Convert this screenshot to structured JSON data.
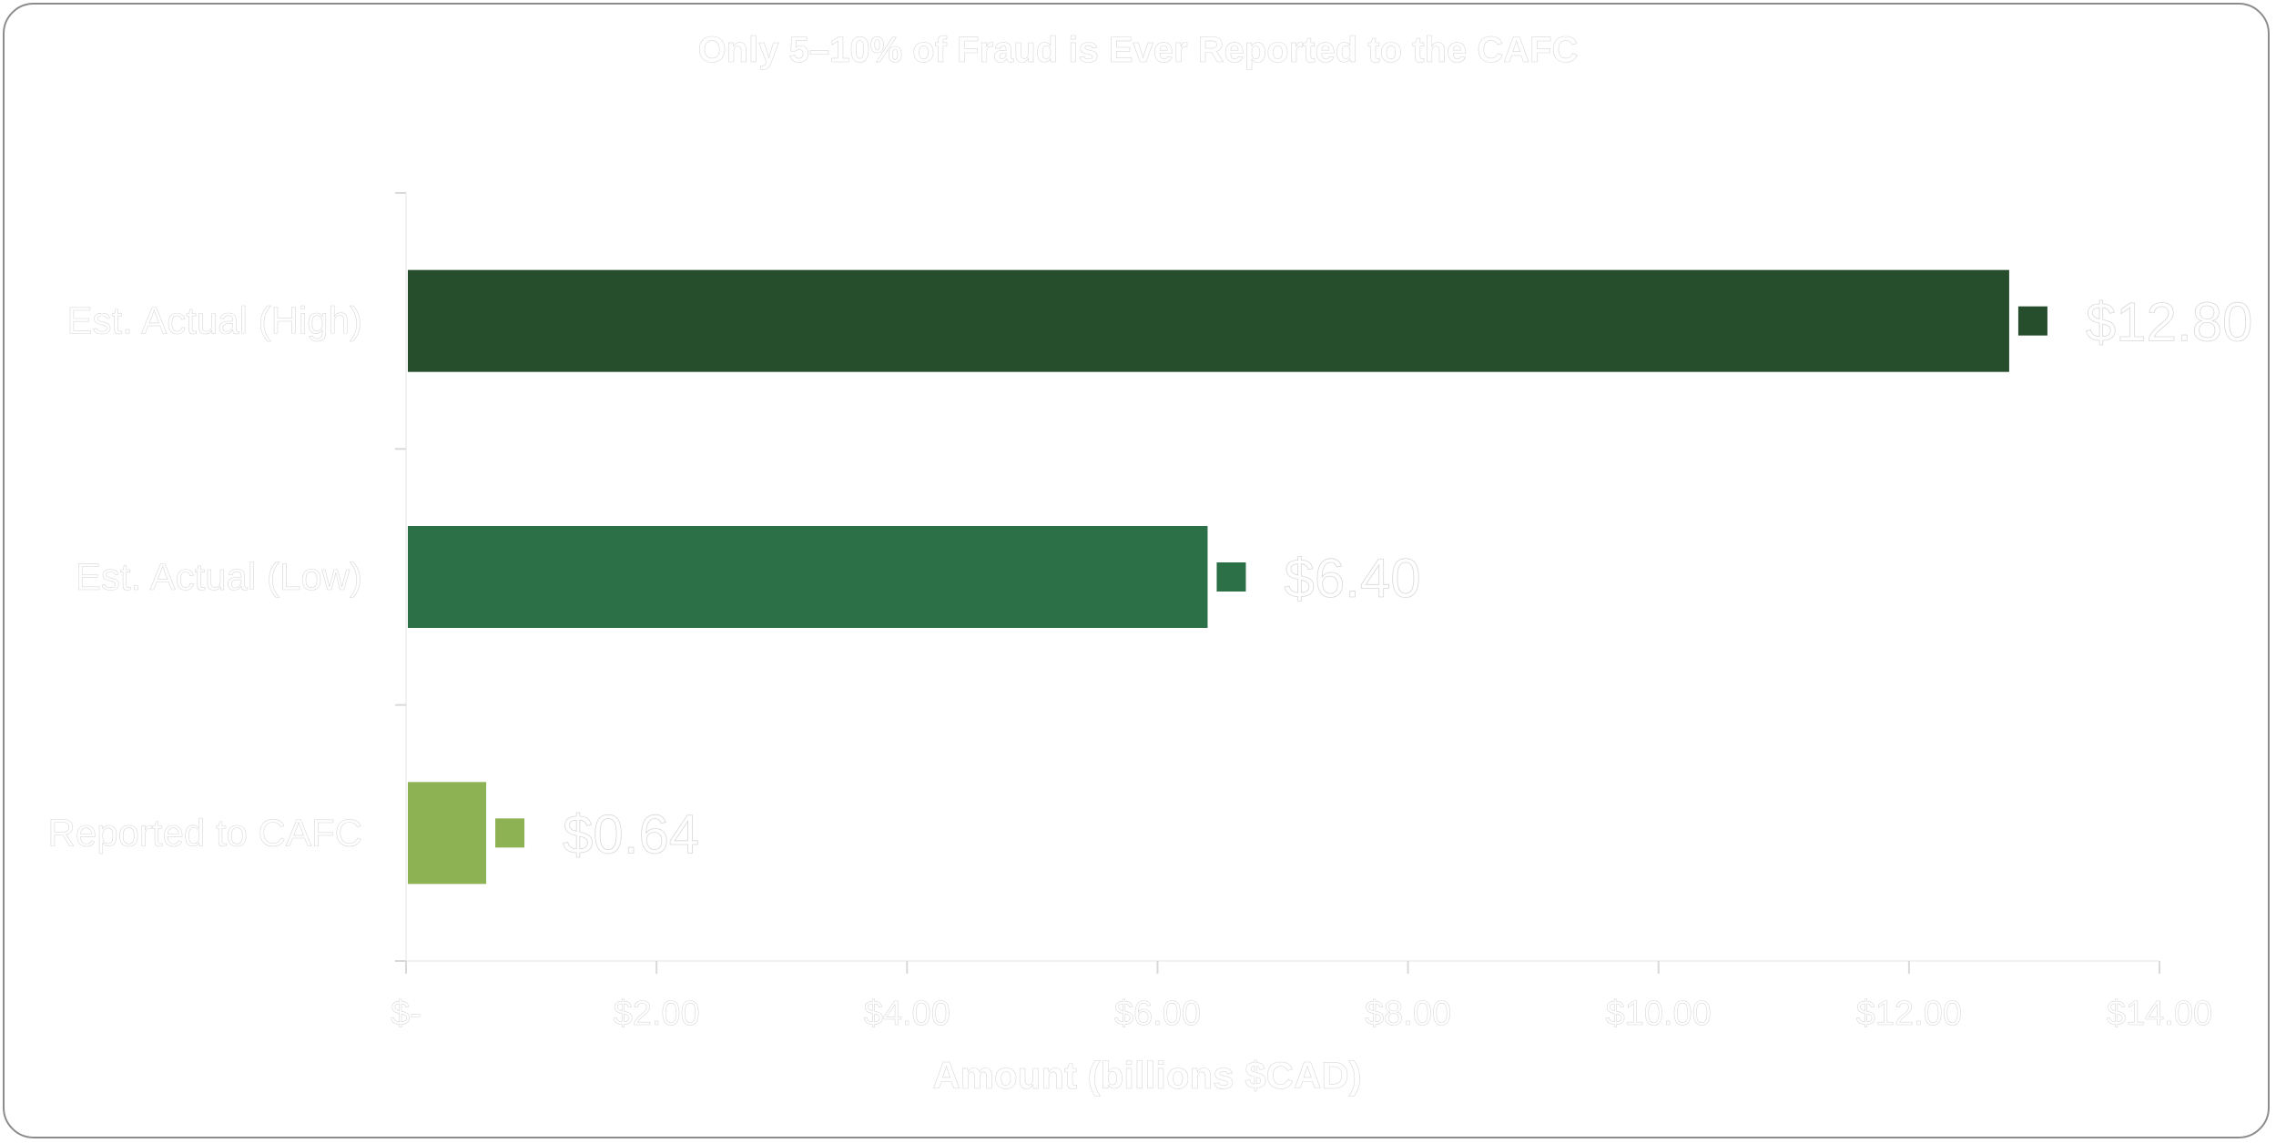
{
  "chart_data": {
    "type": "bar",
    "orientation": "horizontal",
    "title": "Only 5–10% of Fraud is Ever Reported to the CAFC",
    "xlabel": "Amount (billions $CAD)",
    "ylabel": "",
    "xlim": [
      0,
      14
    ],
    "x_ticks": [
      0,
      2,
      4,
      6,
      8,
      10,
      12,
      14
    ],
    "x_tick_labels": [
      "$-",
      "$2.00",
      "$4.00",
      "$6.00",
      "$8.00",
      "$10.00",
      "$12.00",
      "$14.00"
    ],
    "categories": [
      "Est. Actual (High)",
      "Est. Actual (Low)",
      "Reported to CAFC"
    ],
    "values": [
      12.8,
      6.4,
      0.64
    ],
    "data_labels": [
      "$12.80",
      "$6.40",
      "$0.64"
    ],
    "colors": [
      "#264d2c",
      "#2b7047",
      "#8db254"
    ],
    "grid": false,
    "legend": "none"
  }
}
